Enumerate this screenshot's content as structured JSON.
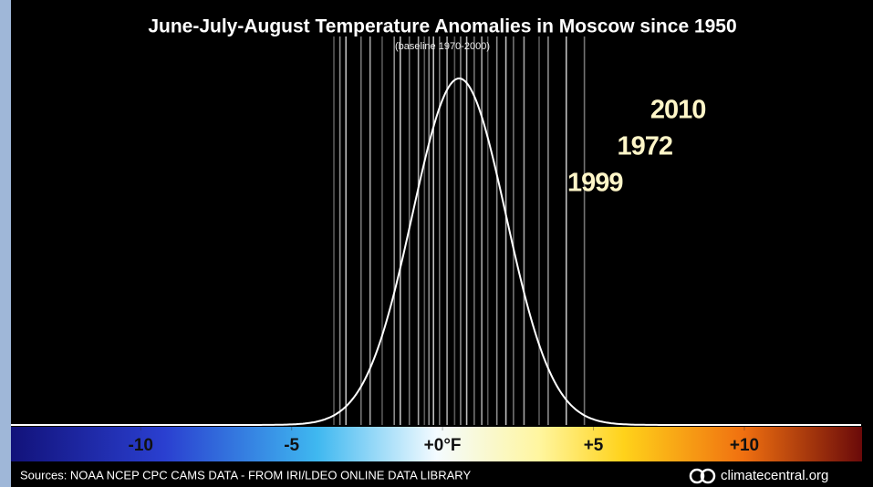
{
  "chart_data": {
    "type": "rug",
    "title": "June-July-August Temperature Anomalies in Moscow since 1950",
    "subtitle": "(baseline 1970-2000)",
    "source": "Sources: NOAA NCEP CPC CAMS DATA - FROM IRI/LDEO ONLINE DATA LIBRARY",
    "logo": "climatecentral.org",
    "xlim": [
      -14.3,
      13.9
    ],
    "xticks": [
      -10,
      -5,
      {
        "value": 0,
        "label": "+0°F"
      },
      {
        "value": 5,
        "label": "+5"
      },
      {
        "value": 10,
        "label": "+10"
      }
    ],
    "values": [
      -3.6,
      -3.4,
      -3.2,
      -2.7,
      -2.4,
      -2.0,
      -1.6,
      -1.4,
      -1.1,
      -0.8,
      -0.6,
      -0.45,
      -0.3,
      -0.1,
      0.15,
      0.4,
      0.6,
      0.8,
      1.05,
      1.3,
      1.5,
      1.8,
      2.1,
      2.35,
      2.7,
      3.2,
      3.5,
      4.1,
      4.7
    ],
    "color": "#ffffff",
    "highlights": [
      {
        "label": "1999",
        "value": 5.05
      },
      {
        "label": "1972",
        "value": 6.7
      },
      {
        "label": "2010",
        "value": 7.8
      }
    ],
    "highlight_color": "#f5e37a",
    "curve": {
      "mean": 0.55,
      "sd": 1.55
    }
  }
}
